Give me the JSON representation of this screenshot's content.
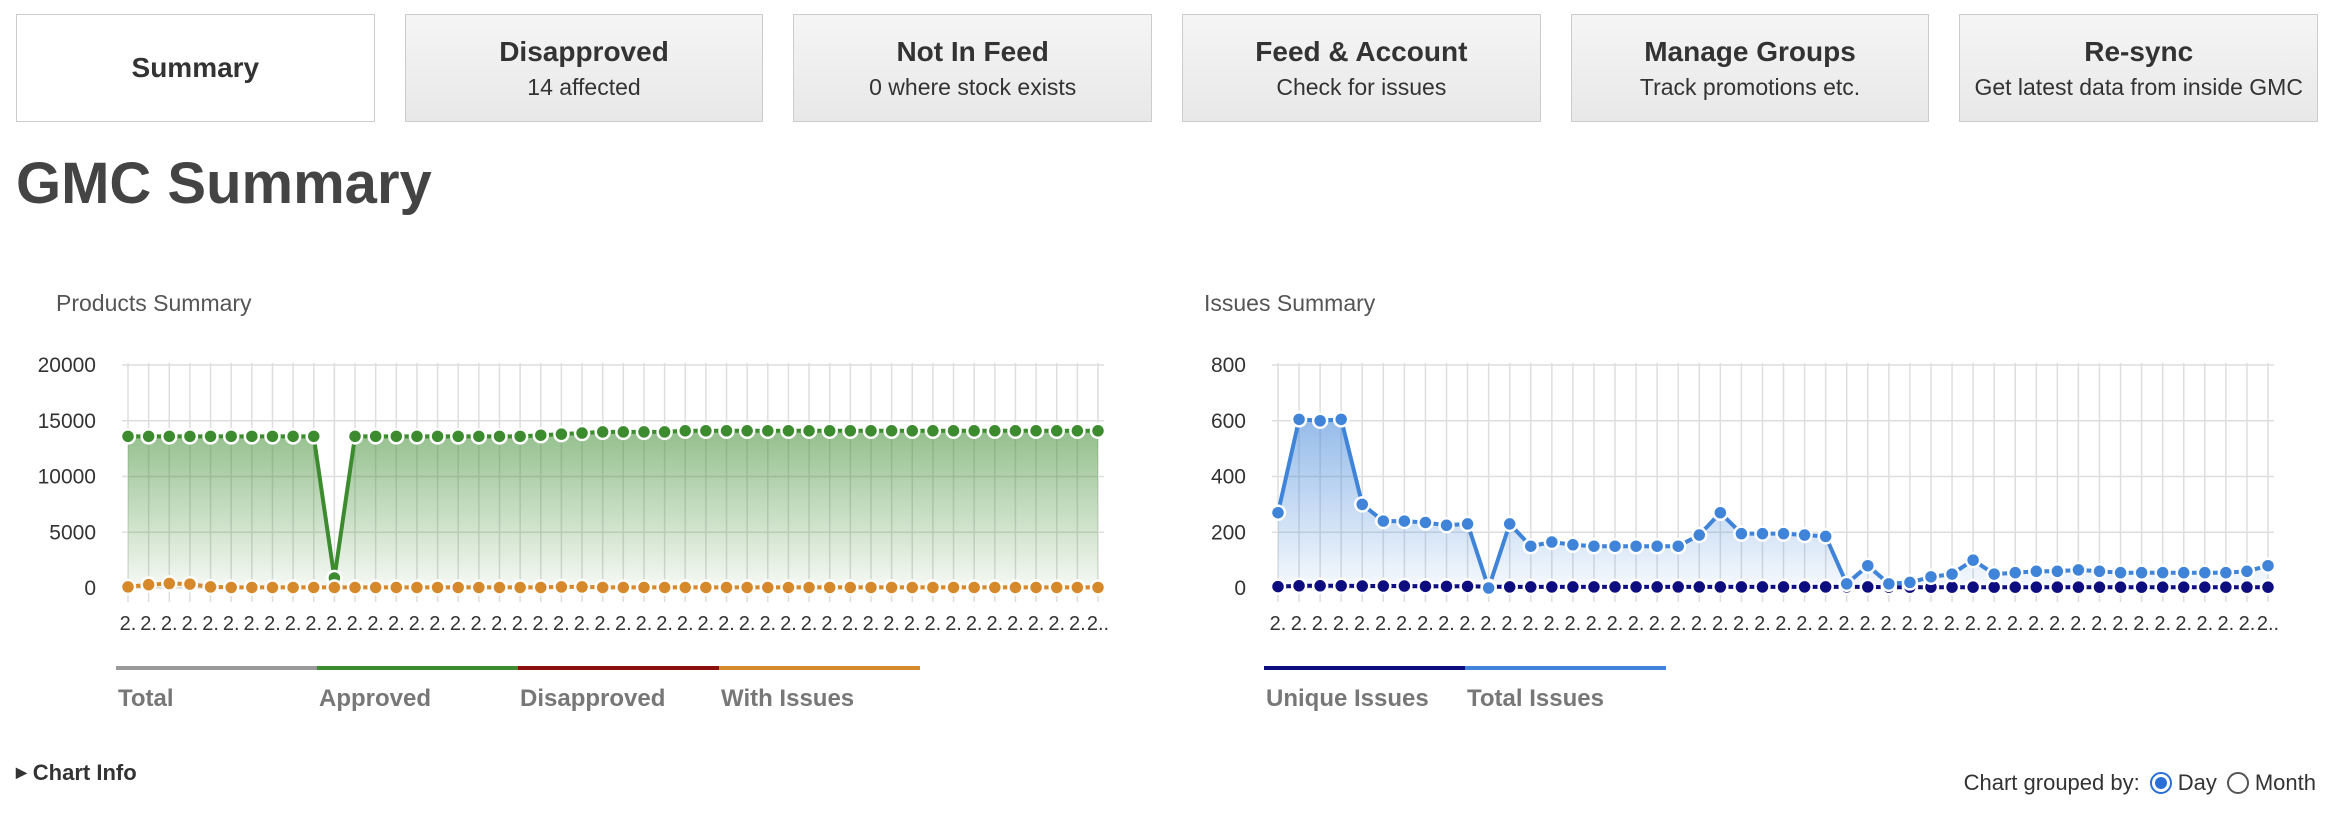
{
  "tabs": [
    {
      "title": "Summary",
      "subtitle": ""
    },
    {
      "title": "Disapproved",
      "subtitle": "14 affected"
    },
    {
      "title": "Not In Feed",
      "subtitle": "0 where stock exists"
    },
    {
      "title": "Feed & Account",
      "subtitle": "Check for issues"
    },
    {
      "title": "Manage Groups",
      "subtitle": "Track promotions etc."
    },
    {
      "title": "Re-sync",
      "subtitle": "Get latest data from inside GMC"
    }
  ],
  "page_title": "GMC Summary",
  "chart_info_label": "Chart Info",
  "group_by": {
    "label": "Chart grouped by:",
    "options": [
      "Day",
      "Month"
    ],
    "selected": "Day"
  },
  "chart_data": [
    {
      "type": "line",
      "title": "Products Summary",
      "x_tick_label": "2.",
      "x_last_tick_label": "2..",
      "ylim": [
        0,
        20000
      ],
      "yticks": [
        0,
        5000,
        10000,
        15000,
        20000
      ],
      "grid": true,
      "legend_position": "bottom",
      "series": [
        {
          "name": "Total",
          "color": "#999999",
          "values": []
        },
        {
          "name": "Approved",
          "color": "#3d8b2f",
          "fill": true,
          "values": [
            13600,
            13600,
            13600,
            13600,
            13600,
            13600,
            13600,
            13600,
            13600,
            13600,
            900,
            13600,
            13600,
            13600,
            13600,
            13600,
            13600,
            13600,
            13600,
            13600,
            13700,
            13800,
            13900,
            14000,
            14000,
            14000,
            14000,
            14100,
            14100,
            14100,
            14100,
            14100,
            14100,
            14100,
            14100,
            14100,
            14100,
            14100,
            14100,
            14100,
            14100,
            14100,
            14100,
            14100,
            14100,
            14100,
            14100,
            14100
          ]
        },
        {
          "name": "Disapproved",
          "color": "#8b0e0e",
          "values": []
        },
        {
          "name": "With Issues",
          "color": "#d6892b",
          "values": [
            100,
            300,
            400,
            350,
            100,
            50,
            50,
            50,
            50,
            50,
            50,
            50,
            50,
            50,
            50,
            50,
            50,
            50,
            50,
            50,
            50,
            100,
            100,
            50,
            50,
            50,
            50,
            50,
            50,
            50,
            50,
            50,
            50,
            50,
            50,
            50,
            50,
            50,
            50,
            50,
            50,
            50,
            50,
            50,
            50,
            50,
            50,
            50
          ]
        }
      ]
    },
    {
      "type": "line",
      "title": "Issues Summary",
      "x_tick_label": "2.",
      "x_last_tick_label": "2..",
      "ylim": [
        0,
        800
      ],
      "yticks": [
        0,
        200,
        400,
        600,
        800
      ],
      "grid": true,
      "legend_position": "bottom",
      "series": [
        {
          "name": "Unique Issues",
          "color": "#0d0d80",
          "values": [
            5,
            8,
            8,
            8,
            7,
            7,
            7,
            6,
            6,
            6,
            5,
            4,
            4,
            4,
            4,
            4,
            4,
            4,
            4,
            4,
            4,
            4,
            4,
            4,
            4,
            4,
            4,
            4,
            4,
            3,
            3,
            3,
            3,
            3,
            3,
            3,
            3,
            3,
            3,
            3,
            3,
            3,
            3,
            3,
            3,
            3,
            3,
            3
          ]
        },
        {
          "name": "Total Issues",
          "color": "#3f84d8",
          "fill": true,
          "values": [
            270,
            605,
            600,
            605,
            300,
            240,
            240,
            235,
            225,
            230,
            0,
            230,
            150,
            165,
            155,
            150,
            150,
            150,
            150,
            150,
            190,
            270,
            195,
            195,
            195,
            190,
            185,
            15,
            80,
            15,
            20,
            40,
            50,
            100,
            50,
            55,
            60,
            60,
            65,
            60,
            55,
            55,
            55,
            55,
            55,
            55,
            60,
            80
          ]
        }
      ]
    }
  ]
}
